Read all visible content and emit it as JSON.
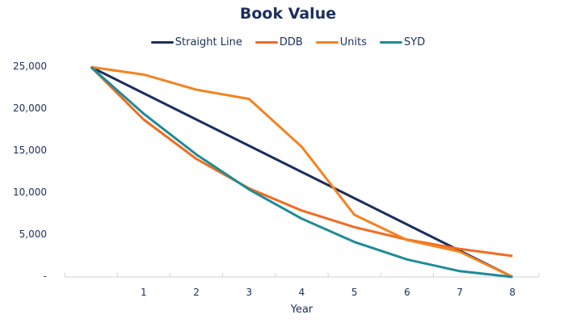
{
  "chart_data": {
    "type": "line",
    "title": "Book Value",
    "xlabel": "Year",
    "ylabel": "",
    "categories": [
      "",
      "1",
      "2",
      "3",
      "4",
      "5",
      "6",
      "7",
      "8"
    ],
    "x": [
      0,
      1,
      2,
      3,
      4,
      5,
      6,
      7,
      8
    ],
    "ylim": [
      0,
      25000
    ],
    "yticks": [
      0,
      5000,
      10000,
      15000,
      20000,
      25000
    ],
    "ytick_labels": [
      "-",
      "5,000",
      "10,000",
      "15,000",
      "20,000",
      "25,000"
    ],
    "grid": false,
    "legend_position": "top",
    "series": [
      {
        "name": "Straight Line",
        "color": "#1b2f5b",
        "values": [
          25000,
          21875,
          18750,
          15625,
          12500,
          9375,
          6250,
          3125,
          0
        ]
      },
      {
        "name": "DDB",
        "color": "#f26b21",
        "values": [
          25000,
          18750,
          14063,
          10547,
          7910,
          5933,
          4449,
          3337,
          2503
        ]
      },
      {
        "name": "Units",
        "color": "#f5821f",
        "values": [
          25000,
          24100,
          22300,
          21200,
          15500,
          7400,
          4400,
          3000,
          0
        ]
      },
      {
        "name": "SYD",
        "color": "#1e8c96",
        "values": [
          25000,
          19444,
          14583,
          10417,
          6944,
          4167,
          2083,
          694,
          0
        ]
      }
    ]
  }
}
